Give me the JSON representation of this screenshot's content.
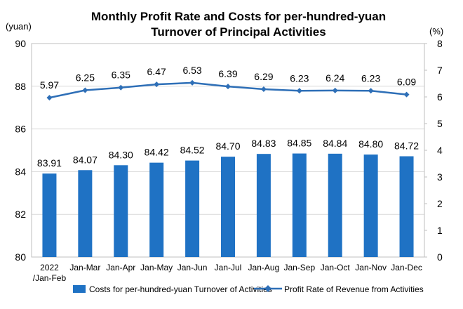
{
  "chart_data": {
    "type": "bar+line",
    "title_line1": "Monthly Profit Rate and Costs for per-hundred-yuan",
    "title_line2": "Turnover of Principal Activities",
    "left_unit": "(yuan)",
    "right_unit": "(%)",
    "categories": [
      [
        "2022",
        "/Jan-Feb"
      ],
      [
        "Jan-Mar"
      ],
      [
        "Jan-Apr"
      ],
      [
        "Jan-May"
      ],
      [
        "Jan-Jun"
      ],
      [
        "Jan-Jul"
      ],
      [
        "Jan-Aug"
      ],
      [
        "Jan-Sep"
      ],
      [
        "Jan-Oct"
      ],
      [
        "Jan-Nov"
      ],
      [
        "Jan-Dec"
      ]
    ],
    "series": [
      {
        "name": "Costs for per-hundred-yuan Turnover of Activities",
        "type": "bar",
        "axis": "left",
        "values": [
          83.91,
          84.07,
          84.3,
          84.42,
          84.52,
          84.7,
          84.83,
          84.85,
          84.84,
          84.8,
          84.72
        ],
        "labels": [
          "83.91",
          "84.07",
          "84.30",
          "84.42",
          "84.52",
          "84.70",
          "84.83",
          "84.85",
          "84.84",
          "84.80",
          "84.72"
        ],
        "color": "#1f72c4"
      },
      {
        "name": "Profit Rate of Revenue from Activities",
        "type": "line",
        "axis": "right",
        "values": [
          5.97,
          6.25,
          6.35,
          6.47,
          6.53,
          6.39,
          6.29,
          6.23,
          6.24,
          6.23,
          6.09
        ],
        "labels": [
          "5.97",
          "6.25",
          "6.35",
          "6.47",
          "6.53",
          "6.39",
          "6.29",
          "6.23",
          "6.24",
          "6.23",
          "6.09"
        ],
        "color": "#2e6fb7"
      }
    ],
    "left_axis": {
      "min": 80,
      "max": 90,
      "ticks": [
        "80",
        "82",
        "84",
        "86",
        "88",
        "90"
      ]
    },
    "right_axis": {
      "min": 0,
      "max": 8,
      "ticks": [
        "0",
        "1",
        "2",
        "3",
        "4",
        "5",
        "6",
        "7",
        "8"
      ]
    },
    "grid": true,
    "legend_position": "bottom"
  }
}
